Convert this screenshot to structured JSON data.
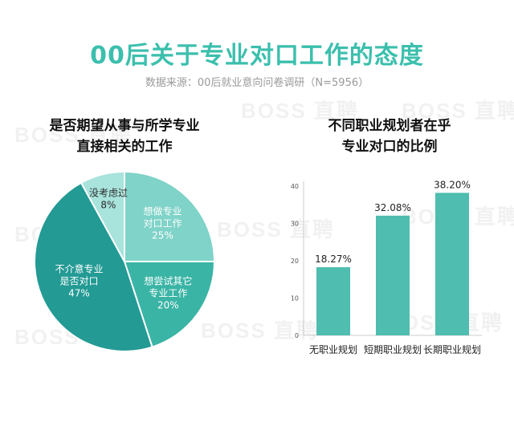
{
  "header": {
    "title": "00后关于专业对口工作的态度",
    "subtitle": "数据来源：00后就业意向问卷调研（N=5956）"
  },
  "watermark": "BOSS 直聘",
  "colors": {
    "title": "#3bbfad",
    "pie": [
      "#7fd3c8",
      "#3ab4a5",
      "#239a94",
      "#a8e3dc"
    ],
    "bar": "#4fbdb0"
  },
  "chart_data": [
    {
      "type": "pie",
      "title_lines": [
        "是否期望从事与所学专业",
        "直接相关的工作"
      ],
      "slices": [
        {
          "label_lines": [
            "想做专业",
            "对口工作"
          ],
          "value": 25,
          "value_label": "25%"
        },
        {
          "label_lines": [
            "想尝试其它",
            "专业工作"
          ],
          "value": 20,
          "value_label": "20%"
        },
        {
          "label_lines": [
            "不介意专业",
            "是否对口"
          ],
          "value": 47,
          "value_label": "47%"
        },
        {
          "label_lines": [
            "没考虑过"
          ],
          "value": 8,
          "value_label": "8%"
        }
      ]
    },
    {
      "type": "bar",
      "title_lines": [
        "不同职业规划者在乎",
        "专业对口的比例"
      ],
      "categories": [
        "无职业规划",
        "短期职业规划",
        "长期职业规划"
      ],
      "values": [
        18.27,
        32.08,
        38.2
      ],
      "value_labels": [
        "18.27%",
        "32.08%",
        "38.20%"
      ],
      "yticks": [
        0,
        10,
        20,
        30,
        40
      ],
      "ylim": [
        0,
        40
      ],
      "grid": false,
      "legend": "none"
    }
  ]
}
